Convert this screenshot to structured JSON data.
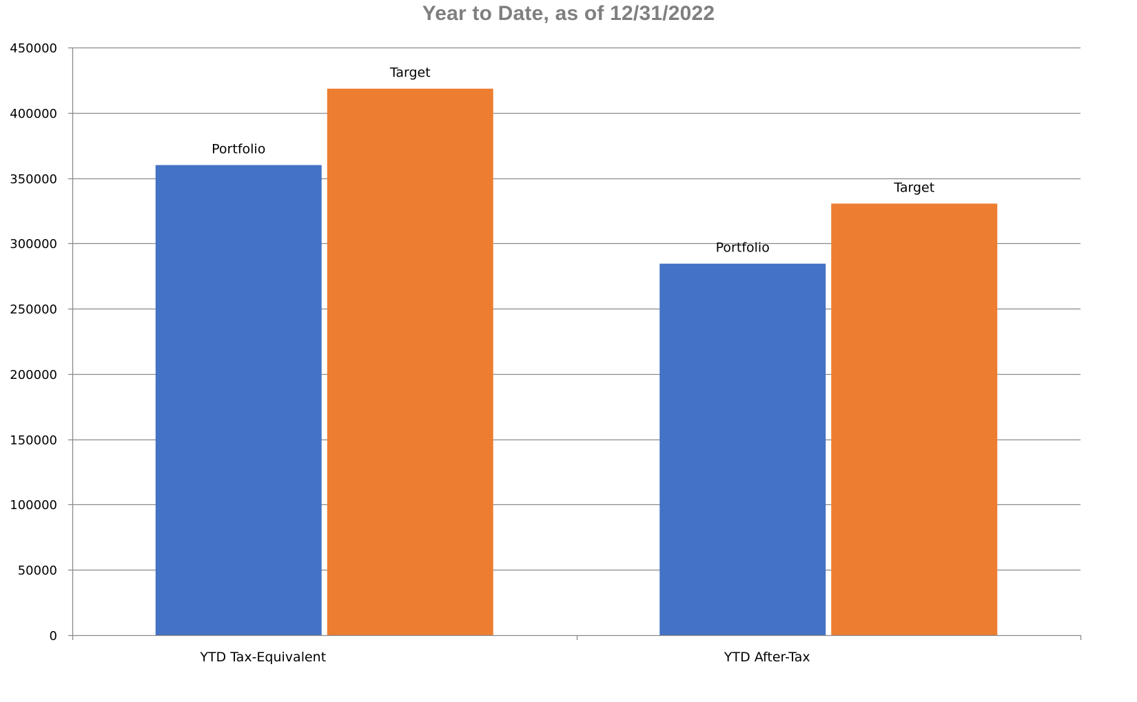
{
  "chart_data": {
    "type": "bar",
    "title": "Year to Date, as of 12/31/2022",
    "xlabel": "",
    "ylabel": "",
    "categories": [
      "YTD Tax-Equivalent",
      "YTD After-Tax"
    ],
    "series": [
      {
        "values": [
          360000,
          284500
        ],
        "color": "#4472c4",
        "data_labels": [
          "Portfolio",
          "Portfolio"
        ]
      },
      {
        "values": [
          418500,
          330500
        ],
        "color": "#ed7d31",
        "data_labels": [
          "Target",
          "Target"
        ]
      }
    ],
    "ylim": [
      0,
      450000
    ],
    "yticks": [
      0,
      50000,
      100000,
      150000,
      200000,
      250000,
      300000,
      350000,
      400000,
      450000
    ],
    "ytick_labels": [
      "0",
      "50000",
      "100000",
      "150000",
      "200000",
      "250000",
      "300000",
      "350000",
      "400000",
      "450000"
    ],
    "grid": true,
    "legend": "none"
  }
}
